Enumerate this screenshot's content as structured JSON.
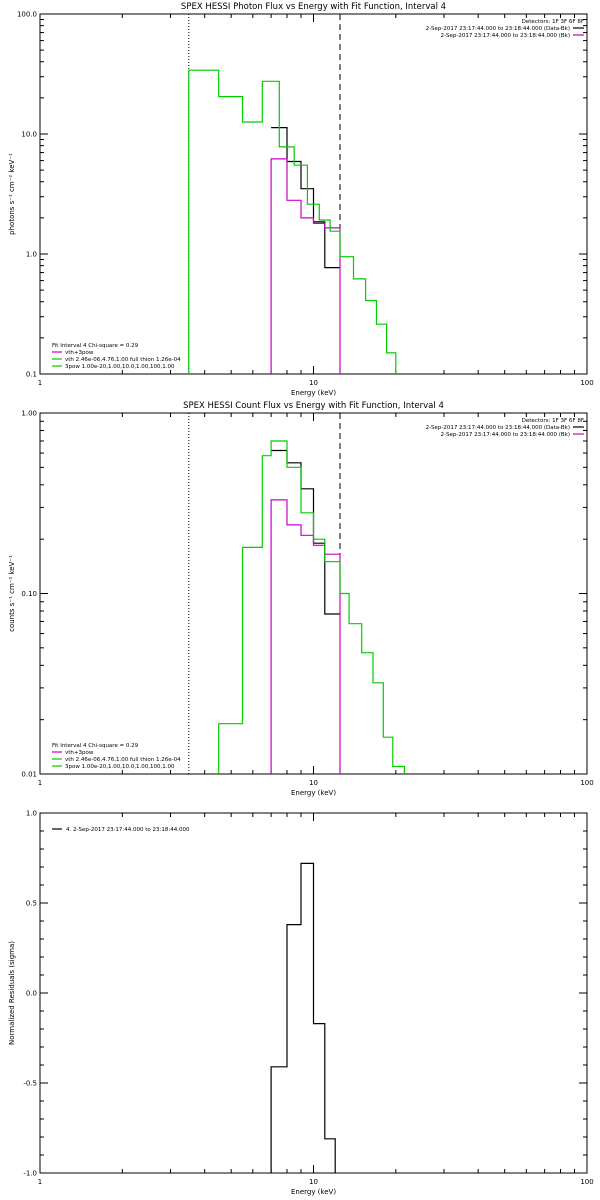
{
  "chart_data": [
    {
      "type": "line",
      "title": "SPEX HESSI Photon Flux vs Energy with Fit Function, Interval 4",
      "xlabel": "Energy (keV)",
      "ylabel": "photons s⁻¹ cm⁻² keV⁻¹",
      "xscale": "log",
      "yscale": "log",
      "xlim": [
        1,
        100
      ],
      "ylim": [
        0.1,
        100
      ],
      "xticks": [
        {
          "v": 1,
          "label": "1"
        },
        {
          "v": 10,
          "label": "10"
        },
        {
          "v": 100,
          "label": "100"
        }
      ],
      "yticks": [
        {
          "v": 0.1,
          "label": "0.1"
        },
        {
          "v": 1,
          "label": "1.0"
        },
        {
          "v": 10,
          "label": "10.0"
        },
        {
          "v": 100,
          "label": "100.0"
        }
      ],
      "vlines": [
        {
          "x": 3.5,
          "style": "dotted"
        },
        {
          "x": 12.5,
          "style": "dashed"
        }
      ],
      "legend_top": {
        "header": "Detectors: 1F 3F 6F 8F",
        "items": [
          {
            "text": "2-Sep-2017 23:17:44.000 to 23:18:44.000 (Data-Bk)",
            "color": "#000000"
          },
          {
            "text": "2-Sep-2017 23:17:44.000 to 23:18:44.000 (Bk)",
            "color": "#cc00cc"
          }
        ]
      },
      "legend_bottom": {
        "header": "Fit Interval  4    Chi-square = 0.29",
        "items": [
          {
            "text": "vth+3pow",
            "color": "#cc00cc"
          },
          {
            "text": "vth 2.46e-06,4.76,1.00  full thion 1.26e-04",
            "color": "#00cc00"
          },
          {
            "text": "3pow 1.00e-20,1.00,10.0,1.00,100,1.00",
            "color": "#00cc00"
          }
        ]
      },
      "series": [
        {
          "name": "Data-Bk",
          "color": "#000000",
          "edges": [
            7,
            8,
            9,
            10,
            11,
            12.5
          ],
          "values": [
            11.3,
            5.9,
            3.5,
            1.85,
            0.77
          ]
        },
        {
          "name": "Bk",
          "color": "#cc00cc",
          "edges": [
            7,
            8,
            9,
            10,
            11,
            12.5
          ],
          "values": [
            6.2,
            2.8,
            2.0,
            1.8,
            1.65
          ],
          "drop_to_min": true
        },
        {
          "name": "vth+3pow",
          "color": "#00cc00",
          "edges": [
            3.5,
            4.5,
            5.5,
            6.5,
            7.5,
            8.5,
            9.5,
            10.5,
            11.5,
            12.5,
            14,
            15.5,
            17,
            18.5,
            20
          ],
          "values": [
            34,
            20.5,
            12.6,
            27.5,
            7.8,
            5.5,
            2.6,
            1.92,
            1.55,
            0.95,
            0.62,
            0.41,
            0.26,
            0.15
          ],
          "drop_to_min": true
        }
      ]
    },
    {
      "type": "line",
      "title": "SPEX HESSI Count Flux vs Energy with Fit Function, Interval 4",
      "xlabel": "Energy (keV)",
      "ylabel": "counts s⁻¹ cm⁻² keV⁻¹",
      "xscale": "log",
      "yscale": "log",
      "xlim": [
        1,
        100
      ],
      "ylim": [
        0.01,
        1
      ],
      "xticks": [
        {
          "v": 1,
          "label": "1"
        },
        {
          "v": 10,
          "label": "10"
        },
        {
          "v": 100,
          "label": "100"
        }
      ],
      "yticks": [
        {
          "v": 0.01,
          "label": "0.01"
        },
        {
          "v": 0.1,
          "label": "0.10"
        },
        {
          "v": 1,
          "label": "1.00"
        }
      ],
      "vlines": [
        {
          "x": 3.5,
          "style": "dotted"
        },
        {
          "x": 12.5,
          "style": "dashed"
        }
      ],
      "legend_top": {
        "header": "Detectors: 1F 3F 6F 8F",
        "items": [
          {
            "text": "2-Sep-2017 23:17:44.000 to 23:18:44.000 (Data-Bk)",
            "color": "#000000"
          },
          {
            "text": "2-Sep-2017 23:17:44.000 to 23:18:44.000 (Bk)",
            "color": "#cc00cc"
          }
        ]
      },
      "legend_bottom": {
        "header": "Fit Interval  4    Chi-square = 0.29",
        "items": [
          {
            "text": "vth+3pow",
            "color": "#cc00cc"
          },
          {
            "text": "vth 2.46e-06,4.76,1.00  full thion 1.26e-04",
            "color": "#00cc00"
          },
          {
            "text": "3pow 1.00e-20,1.00,10.0,1.00,100,1.00",
            "color": "#00cc00"
          }
        ]
      },
      "series": [
        {
          "name": "Data-Bk",
          "color": "#000000",
          "edges": [
            7,
            8,
            9,
            10,
            11,
            12.5
          ],
          "values": [
            0.62,
            0.53,
            0.38,
            0.19,
            0.077
          ]
        },
        {
          "name": "Bk",
          "color": "#cc00cc",
          "edges": [
            7,
            8,
            9,
            10,
            11,
            12.5
          ],
          "values": [
            0.33,
            0.24,
            0.21,
            0.185,
            0.165
          ],
          "drop_to_min": true
        },
        {
          "name": "vth+3pow",
          "color": "#00cc00",
          "edges": [
            4.5,
            5.5,
            6.5,
            7,
            8,
            9,
            10,
            11,
            12.5,
            13.5,
            15,
            16.5,
            18,
            19.5,
            21.5
          ],
          "values": [
            0.019,
            0.18,
            0.58,
            0.7,
            0.5,
            0.28,
            0.2,
            0.15,
            0.1,
            0.068,
            0.047,
            0.032,
            0.016,
            0.011
          ],
          "drop_to_min": true
        }
      ]
    },
    {
      "type": "line",
      "title": "",
      "xlabel": "Energy (keV)",
      "ylabel": "Normalized Residuals (sigma)",
      "xscale": "log",
      "yscale": "linear",
      "xlim": [
        1,
        100
      ],
      "ylim": [
        -1,
        1
      ],
      "xticks": [
        {
          "v": 1,
          "label": "1"
        },
        {
          "v": 10,
          "label": "10"
        },
        {
          "v": 100,
          "label": "100"
        }
      ],
      "yticks": [
        {
          "v": -1,
          "label": "-1.0"
        },
        {
          "v": -0.5,
          "label": "-0.5"
        },
        {
          "v": 0,
          "label": "0.0"
        },
        {
          "v": 0.5,
          "label": "0.5"
        },
        {
          "v": 1,
          "label": "1.0"
        }
      ],
      "vlines": [],
      "legend_top": {
        "header": "",
        "items": []
      },
      "legend_left": {
        "items": [
          {
            "text": "4.  2-Sep-2017 23:17:44.000 to 23:18:44.000",
            "color": "#000000"
          }
        ]
      },
      "legend_bottom": {
        "header": "",
        "items": []
      },
      "series": [
        {
          "name": "",
          "color": "#000000",
          "edges": [
            7,
            8,
            9,
            10,
            11,
            12
          ],
          "values": [
            -0.41,
            0.38,
            0.72,
            -0.17,
            -0.81
          ],
          "drop_to_min": true
        }
      ]
    }
  ]
}
